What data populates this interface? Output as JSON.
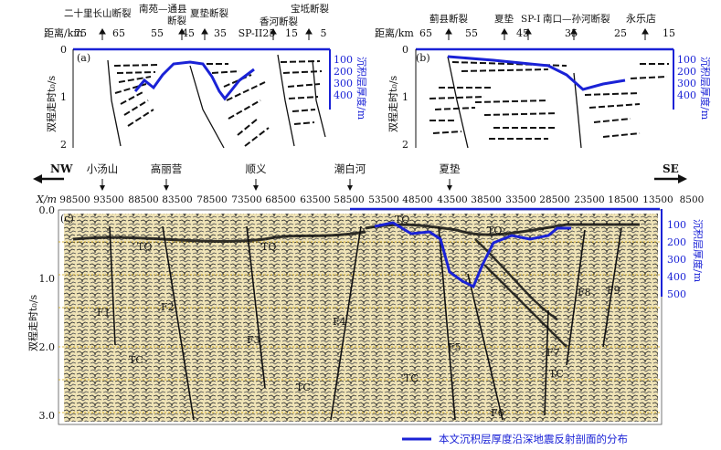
{
  "panel_a": {
    "label": "(a)",
    "distance_title": "距离/km",
    "distance_ticks": [
      "75",
      "65",
      "55",
      "45",
      "35",
      "SP-II25",
      "15",
      "5"
    ],
    "faults": [
      "二十里长山断裂",
      "南苑—通县",
      "断裂",
      "夏垫断裂",
      "香河断裂",
      "宝坻断裂"
    ],
    "time_label": "双程走时t₀/s",
    "time_ticks": [
      "0",
      "1",
      "2"
    ],
    "thickness_label": "沉积层厚度/m",
    "thickness_ticks": [
      "100",
      "200",
      "300",
      "400"
    ]
  },
  "panel_b": {
    "label": "(b)",
    "distance_title": "距离/km",
    "distance_ticks": [
      "65",
      "55",
      "45",
      "35",
      "25",
      "15"
    ],
    "faults": [
      "蓟县断裂",
      "夏垫",
      "SP-I",
      "南口—孙河断裂",
      "永乐店"
    ],
    "time_label": "双程走时t₀/s",
    "time_ticks": [
      "0",
      "1",
      "2"
    ],
    "thickness_label": "沉积层厚度/m",
    "thickness_ticks": [
      "100",
      "200",
      "300",
      "400"
    ]
  },
  "direction": {
    "left": "NW",
    "right": "SE"
  },
  "places": [
    "小汤山",
    "高丽营",
    "顺义",
    "潮白河",
    "夏垫"
  ],
  "panel_c": {
    "label": "(c)",
    "x_title": "X/m",
    "x_ticks": [
      "98500",
      "93500",
      "88500",
      "83500",
      "78500",
      "73500",
      "68500",
      "63500",
      "58500",
      "53500",
      "48500",
      "43500",
      "38500",
      "33500",
      "28500",
      "23500",
      "18500",
      "13500",
      "8500"
    ],
    "time_label": "双程走时t₀/s",
    "time_ticks": [
      "0.0",
      "1.0",
      "2.0",
      "3.0"
    ],
    "thickness_label": "沉积层厚度/m",
    "thickness_ticks": [
      "100",
      "200",
      "300",
      "400",
      "500"
    ],
    "horizon_labels": [
      "TQ",
      "TQ",
      "TQ",
      "TQ",
      "TC",
      "TC",
      "TC",
      "TC"
    ],
    "fault_labels": [
      "F1",
      "F2",
      "F3",
      "F4",
      "F5",
      "F6",
      "F7",
      "F8",
      "F9"
    ]
  },
  "legend_text": "本文沉积层厚度沿深地震反射剖面的分布",
  "colors": {
    "accent": "#1a22d6",
    "section_bg": "#eadfb5",
    "grid": "#d9a800"
  }
}
